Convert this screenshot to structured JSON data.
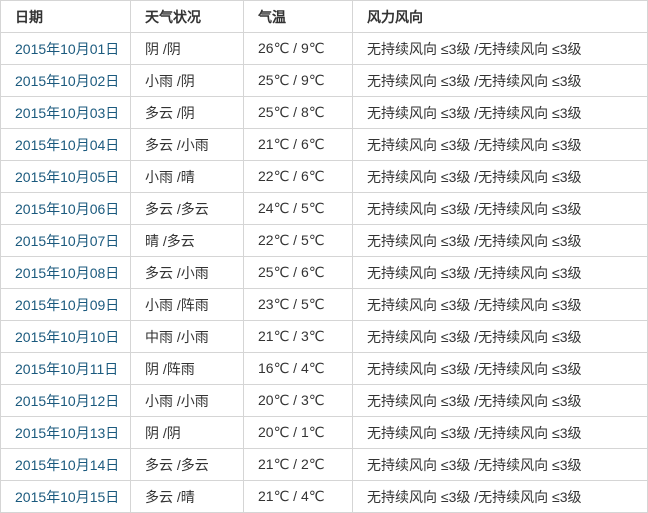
{
  "colors": {
    "date_link": "#1b5a7e",
    "header_text": "#333333",
    "body_text": "#333333",
    "border": "#d5d5d5",
    "background": "#ffffff"
  },
  "table": {
    "columns": [
      {
        "key": "date",
        "label": "日期"
      },
      {
        "key": "weather",
        "label": "天气状况"
      },
      {
        "key": "temp",
        "label": "气温"
      },
      {
        "key": "wind",
        "label": "风力风向"
      }
    ],
    "rows": [
      {
        "date": "2015年10月01日",
        "weather": "阴 /阴",
        "temp": "26℃ / 9℃",
        "wind": "无持续风向 ≤3级 /无持续风向 ≤3级"
      },
      {
        "date": "2015年10月02日",
        "weather": "小雨 /阴",
        "temp": "25℃ / 9℃",
        "wind": "无持续风向 ≤3级 /无持续风向 ≤3级"
      },
      {
        "date": "2015年10月03日",
        "weather": "多云 /阴",
        "temp": "25℃ / 8℃",
        "wind": "无持续风向 ≤3级 /无持续风向 ≤3级"
      },
      {
        "date": "2015年10月04日",
        "weather": "多云 /小雨",
        "temp": "21℃ / 6℃",
        "wind": "无持续风向 ≤3级 /无持续风向 ≤3级"
      },
      {
        "date": "2015年10月05日",
        "weather": "小雨 /晴",
        "temp": "22℃ / 6℃",
        "wind": "无持续风向 ≤3级 /无持续风向 ≤3级"
      },
      {
        "date": "2015年10月06日",
        "weather": "多云 /多云",
        "temp": "24℃ / 5℃",
        "wind": "无持续风向 ≤3级 /无持续风向 ≤3级"
      },
      {
        "date": "2015年10月07日",
        "weather": "晴 /多云",
        "temp": "22℃ / 5℃",
        "wind": "无持续风向 ≤3级 /无持续风向 ≤3级"
      },
      {
        "date": "2015年10月08日",
        "weather": "多云 /小雨",
        "temp": "25℃ / 6℃",
        "wind": "无持续风向 ≤3级 /无持续风向 ≤3级"
      },
      {
        "date": "2015年10月09日",
        "weather": "小雨 /阵雨",
        "temp": "23℃ / 5℃",
        "wind": "无持续风向 ≤3级 /无持续风向 ≤3级"
      },
      {
        "date": "2015年10月10日",
        "weather": "中雨 /小雨",
        "temp": "21℃ / 3℃",
        "wind": "无持续风向 ≤3级 /无持续风向 ≤3级"
      },
      {
        "date": "2015年10月11日",
        "weather": "阴 /阵雨",
        "temp": "16℃ / 4℃",
        "wind": "无持续风向 ≤3级 /无持续风向 ≤3级"
      },
      {
        "date": "2015年10月12日",
        "weather": "小雨 /小雨",
        "temp": "20℃ / 3℃",
        "wind": "无持续风向 ≤3级 /无持续风向 ≤3级"
      },
      {
        "date": "2015年10月13日",
        "weather": "阴 /阴",
        "temp": "20℃ / 1℃",
        "wind": "无持续风向 ≤3级 /无持续风向 ≤3级"
      },
      {
        "date": "2015年10月14日",
        "weather": "多云 /多云",
        "temp": "21℃ / 2℃",
        "wind": "无持续风向 ≤3级 /无持续风向 ≤3级"
      },
      {
        "date": "2015年10月15日",
        "weather": "多云 /晴",
        "temp": "21℃ / 4℃",
        "wind": "无持续风向 ≤3级 /无持续风向 ≤3级"
      }
    ]
  }
}
